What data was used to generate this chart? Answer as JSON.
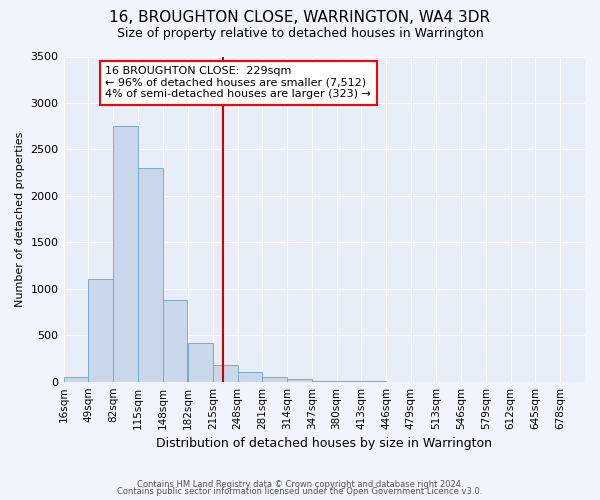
{
  "title": "16, BROUGHTON CLOSE, WARRINGTON, WA4 3DR",
  "subtitle": "Size of property relative to detached houses in Warrington",
  "xlabel": "Distribution of detached houses by size in Warrington",
  "ylabel": "Number of detached properties",
  "bar_color": "#c8d8ea",
  "bar_edge_color": "#7aaac8",
  "background_color": "#e8eef8",
  "grid_color": "#ffffff",
  "fig_color": "#f0f4fc",
  "bin_labels": [
    "16sqm",
    "49sqm",
    "82sqm",
    "115sqm",
    "148sqm",
    "182sqm",
    "215sqm",
    "248sqm",
    "281sqm",
    "314sqm",
    "347sqm",
    "380sqm",
    "413sqm",
    "446sqm",
    "479sqm",
    "513sqm",
    "546sqm",
    "579sqm",
    "612sqm",
    "645sqm",
    "678sqm"
  ],
  "bin_edges": [
    16,
    49,
    82,
    115,
    148,
    182,
    215,
    248,
    281,
    314,
    347,
    380,
    413,
    446,
    479,
    513,
    546,
    579,
    612,
    645,
    678
  ],
  "bar_heights": [
    50,
    1100,
    2750,
    2300,
    880,
    420,
    180,
    100,
    50,
    25,
    10,
    5,
    2,
    0,
    0,
    0,
    0,
    0,
    0,
    0
  ],
  "property_size": 229,
  "red_line_color": "#cc0000",
  "annotation_line1": "16 BROUGHTON CLOSE:  229sqm",
  "annotation_line2": "← 96% of detached houses are smaller (7,512)",
  "annotation_line3": "4% of semi-detached houses are larger (323) →",
  "ylim": [
    0,
    3500
  ],
  "yticks": [
    0,
    500,
    1000,
    1500,
    2000,
    2500,
    3000,
    3500
  ],
  "title_fontsize": 11,
  "subtitle_fontsize": 9,
  "ylabel_fontsize": 8,
  "xlabel_fontsize": 9,
  "footnote1": "Contains HM Land Registry data © Crown copyright and database right 2024.",
  "footnote2": "Contains public sector information licensed under the Open Government Licence v3.0."
}
